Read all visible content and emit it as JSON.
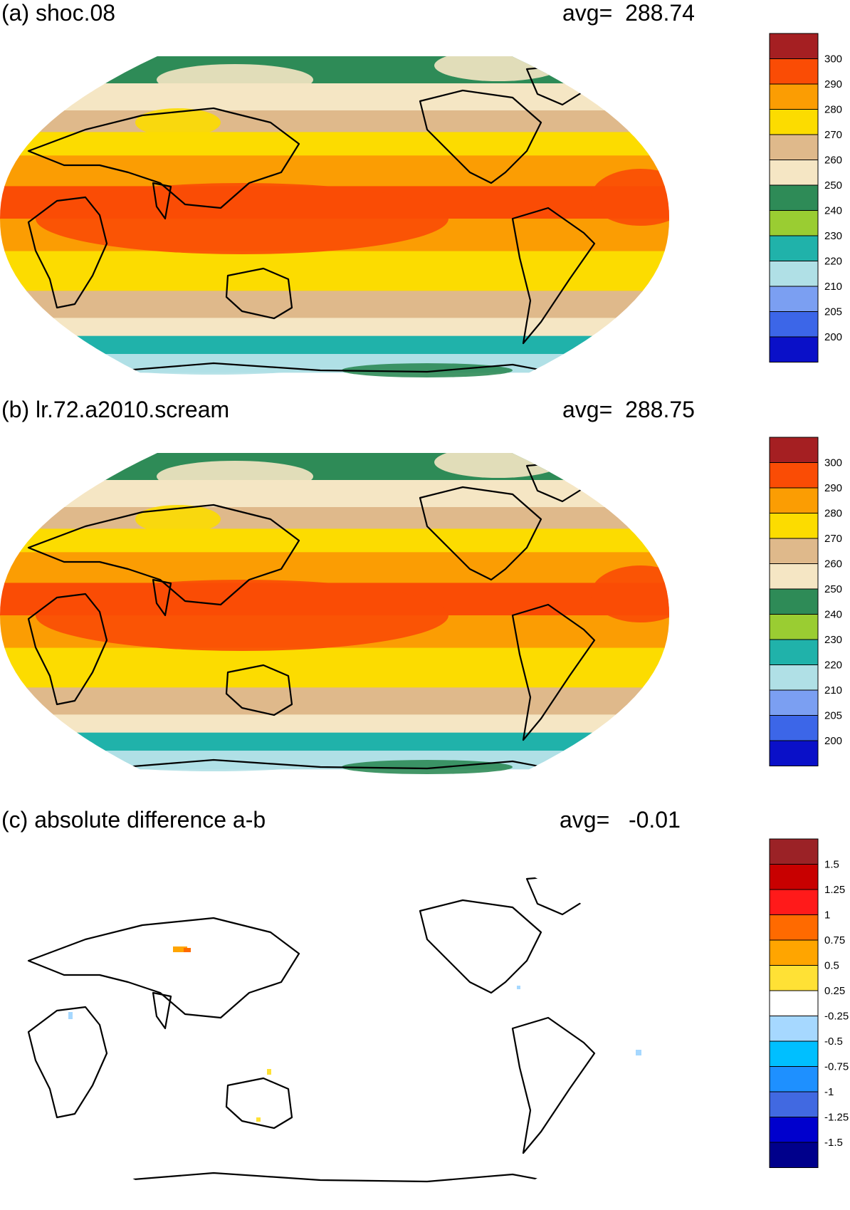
{
  "chart_data": [
    {
      "type": "heatmap",
      "panel_label": "(a) shoc.08",
      "avg_label": "avg=  288.74",
      "avg": 288.74,
      "projection": "Robinson (Pacific-centered)",
      "colorbar": {
        "levels": [
          "300",
          "290",
          "280",
          "270",
          "260",
          "250",
          "240",
          "230",
          "220",
          "210",
          "205",
          "200"
        ],
        "colors": [
          "#a51f22",
          "#fa4c05",
          "#fb9d03",
          "#fcdc00",
          "#dfb98b",
          "#f5e6c4",
          "#2e8b57",
          "#9acd32",
          "#20b2aa",
          "#b0e0e6",
          "#7b9ff2",
          "#3c66e8",
          "#0a10c8"
        ]
      },
      "zones": [
        {
          "lat": 75,
          "band": "250"
        },
        {
          "lat": 60,
          "band": "260"
        },
        {
          "lat": 48,
          "band": "270"
        },
        {
          "lat": 35,
          "band": "280"
        },
        {
          "lat": 18,
          "band": "290"
        },
        {
          "lat": 0,
          "band": "300"
        },
        {
          "lat": -18,
          "band": "290"
        },
        {
          "lat": -40,
          "band": "280"
        },
        {
          "lat": -55,
          "band": "270"
        },
        {
          "lat": -65,
          "band": "260"
        },
        {
          "lat": -75,
          "band": "230"
        },
        {
          "lat": -85,
          "band": "220"
        }
      ]
    },
    {
      "type": "heatmap",
      "panel_label": "(b) lr.72.a2010.scream",
      "avg_label": "avg=  288.75",
      "avg": 288.75,
      "projection": "Robinson (Pacific-centered)",
      "colorbar": {
        "levels": [
          "300",
          "290",
          "280",
          "270",
          "260",
          "250",
          "240",
          "230",
          "220",
          "210",
          "205",
          "200"
        ],
        "colors": [
          "#a51f22",
          "#fa4c05",
          "#fb9d03",
          "#fcdc00",
          "#dfb98b",
          "#f5e6c4",
          "#2e8b57",
          "#9acd32",
          "#20b2aa",
          "#b0e0e6",
          "#7b9ff2",
          "#3c66e8",
          "#0a10c8"
        ]
      },
      "zones": [
        {
          "lat": 75,
          "band": "250"
        },
        {
          "lat": 60,
          "band": "260"
        },
        {
          "lat": 48,
          "band": "270"
        },
        {
          "lat": 35,
          "band": "280"
        },
        {
          "lat": 18,
          "band": "290"
        },
        {
          "lat": 0,
          "band": "300"
        },
        {
          "lat": -18,
          "band": "290"
        },
        {
          "lat": -40,
          "band": "280"
        },
        {
          "lat": -55,
          "band": "270"
        },
        {
          "lat": -65,
          "band": "260"
        },
        {
          "lat": -75,
          "band": "230"
        },
        {
          "lat": -85,
          "band": "220"
        }
      ]
    },
    {
      "type": "heatmap",
      "panel_label": "(c) absolute difference a-b",
      "avg_label": "avg=   -0.01",
      "avg": -0.01,
      "projection": "Robinson (Pacific-centered)",
      "colorbar": {
        "levels": [
          "1.5",
          "1.25",
          "1",
          "0.75",
          "0.5",
          "0.25",
          "-0.25",
          "-0.5",
          "-0.75",
          "-1",
          "-1.25",
          "-1.5"
        ],
        "colors": [
          "#9b2226",
          "#c80000",
          "#ff1a1a",
          "#ff6a00",
          "#ffa500",
          "#ffe135",
          "#ffffff",
          "#a6d8ff",
          "#00bfff",
          "#1e90ff",
          "#4169e1",
          "#0000cd",
          "#00008b"
        ]
      },
      "zones": []
    }
  ]
}
